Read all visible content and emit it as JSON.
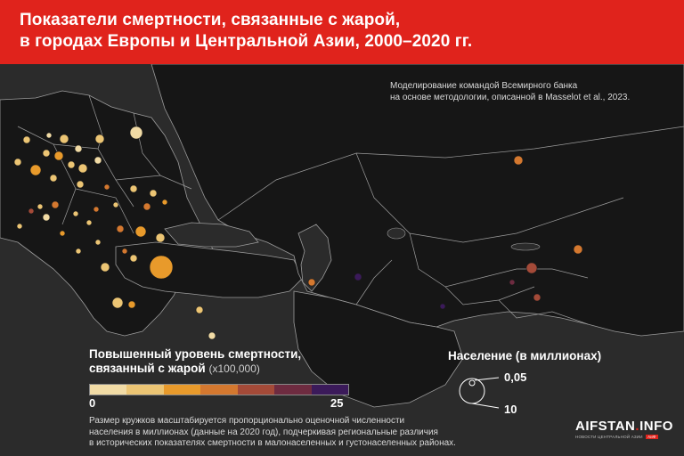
{
  "header": {
    "title_line1": "Показатели смертности, связанные с жарой,",
    "title_line2": "в городах Европы и Центральной Азии, 2000–2020 гг."
  },
  "credit": {
    "line1": "Моделирование командой Всемирного банка",
    "line2": "на основе методологии, описанной в Masselot et al., 2023."
  },
  "legend": {
    "title_line1": "Повышенный уровень смертности,",
    "title_line2": "связанный с жарой",
    "unit": "(x100,000)",
    "min_label": "0",
    "max_label": "25",
    "range": [
      0,
      25
    ],
    "colors": [
      "#f1dba5",
      "#ecc574",
      "#e89a2b",
      "#d4782f",
      "#a44a38",
      "#6e2b40",
      "#3b1a5a"
    ]
  },
  "population_legend": {
    "title": "Население (в миллионах)",
    "small_label": "0,05",
    "large_label": "10"
  },
  "note": {
    "line1": "Размер кружков масштабируется пропорционально оценочной численности",
    "line2": "населения в миллионах (данные на 2020 год), подчеркивая региональные различия",
    "line3": "в исторических показателях смертности в малонаселенных и густонаселенных районах."
  },
  "brand": {
    "name_part1": "AIFSTAN",
    "name_dot": ".",
    "name_part2": "INFO",
    "subtitle": "НОВОСТИ ЦЕНТРАЛЬНОЙ АЗИИ",
    "badge": "АиФ"
  },
  "map_style": {
    "background": "#2b2b2b",
    "land": "#161616",
    "borders": "#a8a8a8",
    "water": "#2b2b2b"
  }
}
